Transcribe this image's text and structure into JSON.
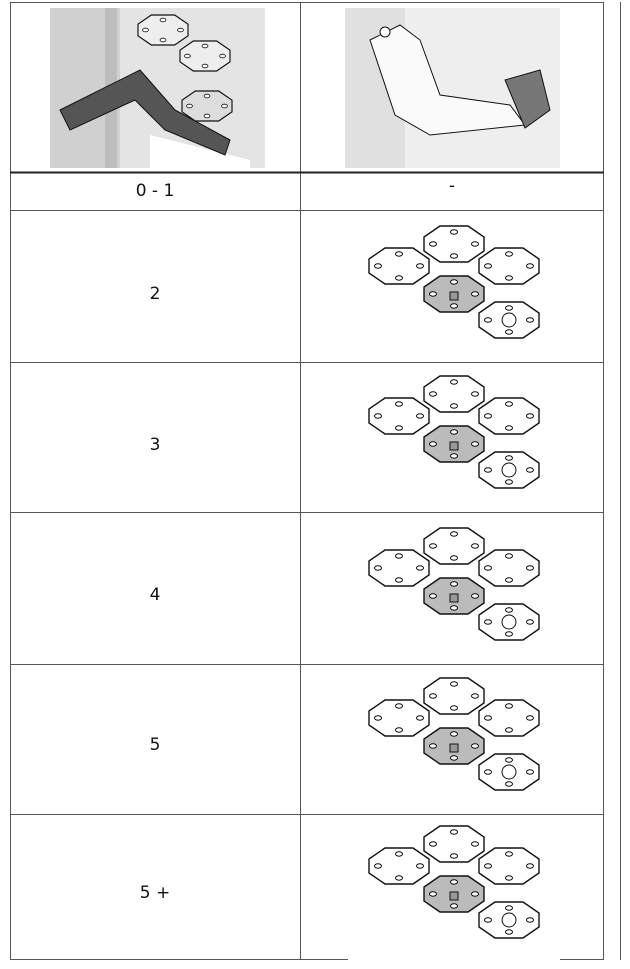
{
  "table": {
    "rows": [
      [
        "0 - 1",
        "-"
      ],
      [
        "2"
      ],
      [
        "3"
      ],
      [
        "4"
      ],
      [
        "5"
      ],
      [
        "5 +"
      ]
    ]
  }
}
